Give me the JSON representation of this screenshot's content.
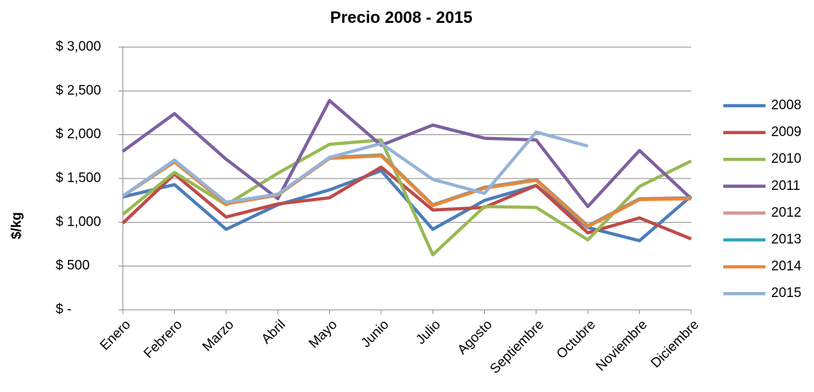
{
  "chart_data": {
    "type": "line",
    "title": "Precio 2008 - 2015",
    "y_label": "$/kg",
    "categories": [
      "Enero",
      "Febrero",
      "Marzo",
      "Abril",
      "Mayo",
      "Junio",
      "Julio",
      "Agosto",
      "Septiembre",
      "Octubre",
      "Noviembre",
      "Diciembre"
    ],
    "ylim": [
      0,
      3000
    ],
    "yticks": [
      {
        "value": 0,
        "label": "$ -"
      },
      {
        "value": 500,
        "label": "$ 500"
      },
      {
        "value": 1000,
        "label": "$ 1,000"
      },
      {
        "value": 1500,
        "label": "$ 1,500"
      },
      {
        "value": 2000,
        "label": "$ 2,000"
      },
      {
        "value": 2500,
        "label": "$ 2,500"
      },
      {
        "value": 3000,
        "label": "$ 3,000"
      }
    ],
    "grid": true,
    "legend": "right",
    "series": [
      {
        "name": "2008",
        "color": "#4a7ebb",
        "values": [
          1290,
          1430,
          920,
          1200,
          1370,
          1590,
          920,
          1250,
          1420,
          940,
          790,
          1300
        ]
      },
      {
        "name": "2009",
        "color": "#be4b48",
        "values": [
          990,
          1550,
          1060,
          1210,
          1280,
          1630,
          1140,
          1170,
          1420,
          880,
          1050,
          810
        ]
      },
      {
        "name": "2010",
        "color": "#98b954",
        "values": [
          1090,
          1570,
          1200,
          1560,
          1890,
          1940,
          630,
          1180,
          1170,
          800,
          1410,
          1700
        ]
      },
      {
        "name": "2011",
        "color": "#7d60a0",
        "values": [
          1810,
          2240,
          1720,
          1270,
          2390,
          1880,
          2110,
          1960,
          1940,
          1180,
          1820,
          1270
        ]
      },
      {
        "name": "2012",
        "color": "#d99694",
        "values": [
          1300,
          1700,
          1220,
          1320,
          1740,
          1770,
          1200,
          1400,
          1490,
          960,
          1270,
          1280
        ]
      },
      {
        "name": "2013",
        "color": "#31a6be",
        "values": [
          1300,
          1690,
          1215,
          1315,
          1735,
          1765,
          1195,
          1395,
          1485,
          955,
          1265,
          1275
        ]
      },
      {
        "name": "2014",
        "color": "#e8873a",
        "values": [
          1300,
          1690,
          1210,
          1310,
          1730,
          1760,
          1190,
          1390,
          1480,
          950,
          1260,
          1270
        ]
      },
      {
        "name": "2015",
        "color": "#95b3d7",
        "values": [
          1300,
          1710,
          1230,
          1320,
          1740,
          1900,
          1490,
          1330,
          2030,
          1870,
          null,
          null
        ]
      }
    ]
  }
}
